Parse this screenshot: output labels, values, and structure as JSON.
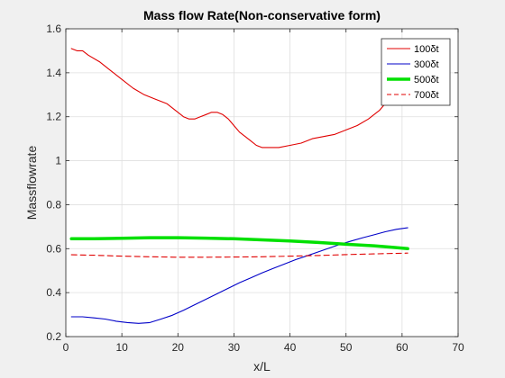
{
  "chart_data": {
    "type": "line",
    "title": "Mass flow Rate(Non-conservative form)",
    "xlabel": "x/L",
    "ylabel": "Massflowrate",
    "xlim": [
      0,
      70
    ],
    "ylim": [
      0.2,
      1.6
    ],
    "xticks": [
      0,
      10,
      20,
      30,
      40,
      50,
      60,
      70
    ],
    "yticks": [
      0.2,
      0.4,
      0.6,
      0.8,
      1,
      1.2,
      1.4,
      1.6
    ],
    "x_tick_labels": [
      "0",
      "10",
      "20",
      "30",
      "40",
      "50",
      "60",
      "70"
    ],
    "y_tick_labels": [
      "0.2",
      "0.4",
      "0.6",
      "0.8",
      "1",
      "1.2",
      "1.4",
      "1.6"
    ],
    "grid": true,
    "legend_position": "top-right",
    "series": [
      {
        "name": "100δt",
        "color": "#e00000",
        "dash": "solid",
        "emphasis": "thin",
        "points": [
          [
            1,
            1.51
          ],
          [
            2,
            1.5
          ],
          [
            3,
            1.5
          ],
          [
            4,
            1.48
          ],
          [
            6,
            1.45
          ],
          [
            8,
            1.41
          ],
          [
            10,
            1.37
          ],
          [
            12,
            1.33
          ],
          [
            14,
            1.3
          ],
          [
            16,
            1.28
          ],
          [
            18,
            1.26
          ],
          [
            20,
            1.22
          ],
          [
            21,
            1.2
          ],
          [
            22,
            1.19
          ],
          [
            23,
            1.19
          ],
          [
            24,
            1.2
          ],
          [
            25,
            1.21
          ],
          [
            26,
            1.22
          ],
          [
            27,
            1.22
          ],
          [
            28,
            1.21
          ],
          [
            29,
            1.19
          ],
          [
            30,
            1.16
          ],
          [
            31,
            1.13
          ],
          [
            32,
            1.11
          ],
          [
            33,
            1.09
          ],
          [
            34,
            1.07
          ],
          [
            35,
            1.06
          ],
          [
            36,
            1.06
          ],
          [
            38,
            1.06
          ],
          [
            40,
            1.07
          ],
          [
            42,
            1.08
          ],
          [
            44,
            1.1
          ],
          [
            46,
            1.11
          ],
          [
            48,
            1.12
          ],
          [
            50,
            1.14
          ],
          [
            52,
            1.16
          ],
          [
            54,
            1.19
          ],
          [
            56,
            1.23
          ],
          [
            57,
            1.26
          ],
          [
            58,
            1.29
          ],
          [
            59,
            1.32
          ],
          [
            60,
            1.35
          ],
          [
            61,
            1.38
          ]
        ]
      },
      {
        "name": "300δt",
        "color": "#0000c8",
        "dash": "solid",
        "emphasis": "thin",
        "points": [
          [
            1,
            0.29
          ],
          [
            2,
            0.29
          ],
          [
            3,
            0.29
          ],
          [
            5,
            0.285
          ],
          [
            7,
            0.28
          ],
          [
            9,
            0.27
          ],
          [
            11,
            0.264
          ],
          [
            13,
            0.26
          ],
          [
            15,
            0.264
          ],
          [
            17,
            0.28
          ],
          [
            19,
            0.297
          ],
          [
            21,
            0.32
          ],
          [
            23,
            0.345
          ],
          [
            25,
            0.37
          ],
          [
            27,
            0.395
          ],
          [
            29,
            0.42
          ],
          [
            31,
            0.445
          ],
          [
            33,
            0.467
          ],
          [
            35,
            0.49
          ],
          [
            37,
            0.51
          ],
          [
            39,
            0.53
          ],
          [
            41,
            0.55
          ],
          [
            43,
            0.567
          ],
          [
            45,
            0.585
          ],
          [
            47,
            0.603
          ],
          [
            49,
            0.62
          ],
          [
            51,
            0.635
          ],
          [
            53,
            0.65
          ],
          [
            55,
            0.663
          ],
          [
            57,
            0.677
          ],
          [
            59,
            0.688
          ],
          [
            61,
            0.695
          ]
        ]
      },
      {
        "name": "500δt",
        "color": "#00e000",
        "dash": "solid",
        "emphasis": "thick",
        "points": [
          [
            1,
            0.645
          ],
          [
            5,
            0.645
          ],
          [
            10,
            0.647
          ],
          [
            15,
            0.65
          ],
          [
            20,
            0.65
          ],
          [
            25,
            0.648
          ],
          [
            30,
            0.645
          ],
          [
            35,
            0.64
          ],
          [
            40,
            0.635
          ],
          [
            45,
            0.628
          ],
          [
            50,
            0.62
          ],
          [
            55,
            0.613
          ],
          [
            58,
            0.607
          ],
          [
            61,
            0.6
          ]
        ]
      },
      {
        "name": "700δt",
        "color": "#e00000",
        "dash": "dashed",
        "emphasis": "thin",
        "points": [
          [
            1,
            0.572
          ],
          [
            5,
            0.57
          ],
          [
            10,
            0.566
          ],
          [
            15,
            0.563
          ],
          [
            20,
            0.561
          ],
          [
            25,
            0.561
          ],
          [
            30,
            0.562
          ],
          [
            35,
            0.563
          ],
          [
            40,
            0.566
          ],
          [
            45,
            0.569
          ],
          [
            50,
            0.573
          ],
          [
            55,
            0.576
          ],
          [
            61,
            0.58
          ]
        ]
      }
    ]
  }
}
